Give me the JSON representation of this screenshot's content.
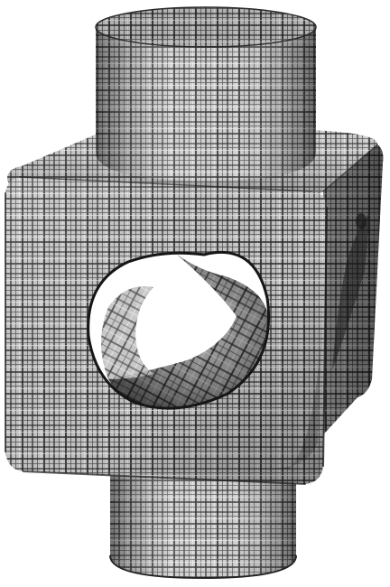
{
  "figure": {
    "subject": "",
    "colors": {
      "background": "#ffffff",
      "surface_light": "#d8d8d8",
      "surface_mid": "#9a9a9a",
      "surface_dark": "#3c3c3c",
      "line_dark": "#1e1e1e",
      "line_light": "#f2f2f2"
    }
  }
}
